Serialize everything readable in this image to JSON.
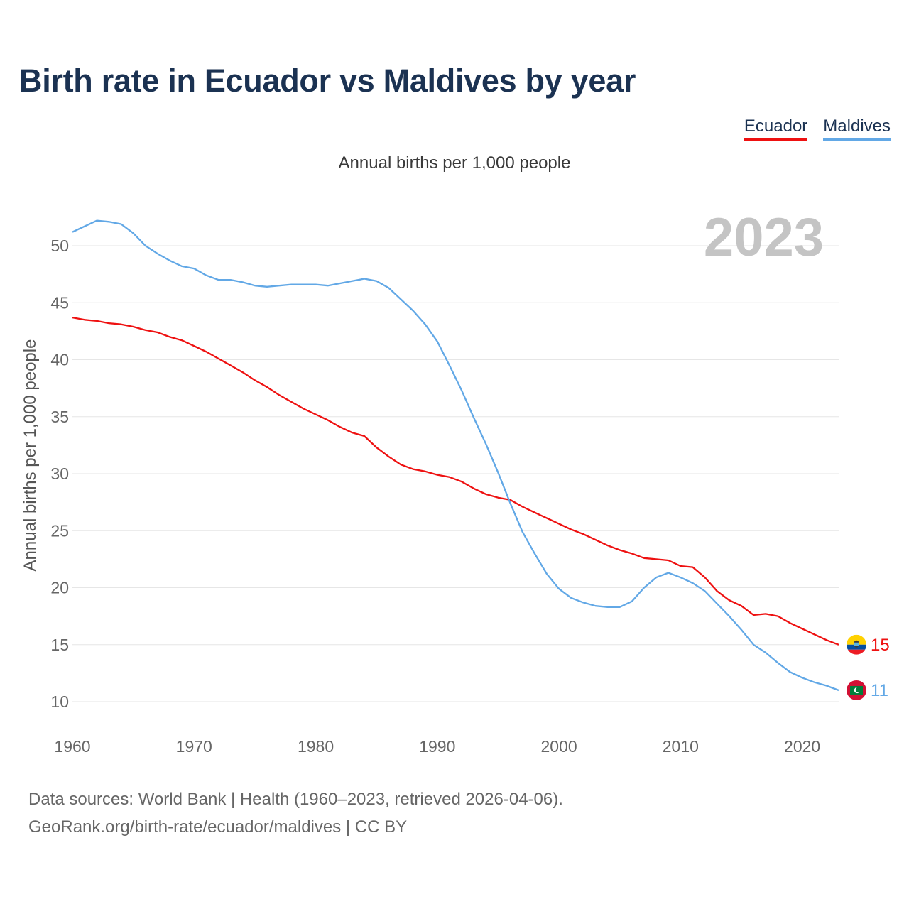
{
  "title": "Birth rate in Ecuador vs Maldives by year",
  "legend": [
    {
      "label": "Ecuador",
      "color": "#ee1111"
    },
    {
      "label": "Maldives",
      "color": "#62a8e6"
    }
  ],
  "subtitle": "Annual births per 1,000 people",
  "year_label": "2023",
  "source": {
    "line1": "Data sources: World Bank | Health (1960–2023, retrieved 2026-04-06).",
    "line2": "GeoRank.org/birth-rate/ecuador/maldives | CC BY"
  },
  "chart_data": {
    "type": "line",
    "title": "Birth rate in Ecuador vs Maldives by year",
    "ylabel": "Annual births per 1,000 people",
    "xlabel": "",
    "xlim": [
      1960,
      2023
    ],
    "ylim": [
      10,
      52.5
    ],
    "x_ticks": [
      1960,
      1970,
      1980,
      1990,
      2000,
      2010,
      2020
    ],
    "y_ticks": [
      10,
      15,
      20,
      25,
      30,
      35,
      40,
      45,
      50
    ],
    "grid": true,
    "x": [
      1960,
      1961,
      1962,
      1963,
      1964,
      1965,
      1966,
      1967,
      1968,
      1969,
      1970,
      1971,
      1972,
      1973,
      1974,
      1975,
      1976,
      1977,
      1978,
      1979,
      1980,
      1981,
      1982,
      1983,
      1984,
      1985,
      1986,
      1987,
      1988,
      1989,
      1990,
      1991,
      1992,
      1993,
      1994,
      1995,
      1996,
      1997,
      1998,
      1999,
      2000,
      2001,
      2002,
      2003,
      2004,
      2005,
      2006,
      2007,
      2008,
      2009,
      2010,
      2011,
      2012,
      2013,
      2014,
      2015,
      2016,
      2017,
      2018,
      2019,
      2020,
      2021,
      2022,
      2023
    ],
    "series": [
      {
        "name": "Ecuador",
        "color": "#ee1111",
        "end_label": "15",
        "values": [
          43.7,
          43.5,
          43.4,
          43.2,
          43.1,
          42.9,
          42.6,
          42.4,
          42.0,
          41.7,
          41.2,
          40.7,
          40.1,
          39.5,
          38.9,
          38.2,
          37.6,
          36.9,
          36.3,
          35.7,
          35.2,
          34.7,
          34.1,
          33.6,
          33.3,
          32.3,
          31.5,
          30.8,
          30.4,
          30.2,
          29.9,
          29.7,
          29.3,
          28.7,
          28.2,
          27.9,
          27.7,
          27.1,
          26.6,
          26.1,
          25.6,
          25.1,
          24.7,
          24.2,
          23.7,
          23.3,
          23.0,
          22.6,
          22.5,
          22.4,
          21.9,
          21.8,
          20.9,
          19.7,
          18.9,
          18.4,
          17.6,
          17.7,
          17.5,
          16.9,
          16.4,
          15.9,
          15.4,
          15.0
        ]
      },
      {
        "name": "Maldives",
        "color": "#62a8e6",
        "end_label": "11",
        "values": [
          51.2,
          51.7,
          52.2,
          52.1,
          51.9,
          51.1,
          50.0,
          49.3,
          48.7,
          48.2,
          48.0,
          47.4,
          47.0,
          47.0,
          46.8,
          46.5,
          46.4,
          46.5,
          46.6,
          46.6,
          46.6,
          46.5,
          46.7,
          46.9,
          47.1,
          46.9,
          46.3,
          45.3,
          44.3,
          43.1,
          41.6,
          39.5,
          37.3,
          34.9,
          32.6,
          30.1,
          27.4,
          24.9,
          23.0,
          21.2,
          19.9,
          19.1,
          18.7,
          18.4,
          18.3,
          18.3,
          18.8,
          20.0,
          20.9,
          21.3,
          20.9,
          20.4,
          19.7,
          18.6,
          17.5,
          16.3,
          15.0,
          14.3,
          13.4,
          12.6,
          12.1,
          11.7,
          11.4,
          11.0
        ]
      }
    ]
  }
}
